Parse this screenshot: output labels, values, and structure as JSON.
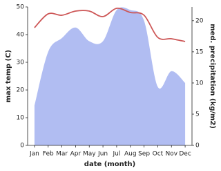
{
  "chart_data": {
    "type": "line-area",
    "x_label": "date (month)",
    "y_label": "max temp (C)",
    "y2_label": "med. precipitation (kg/m2)",
    "categories": [
      "Jan",
      "Feb",
      "Mar",
      "Apr",
      "May",
      "Jun",
      "Jul",
      "Aug",
      "Sep",
      "Oct",
      "Nov",
      "Dec"
    ],
    "ylim": [
      0,
      50
    ],
    "yticks": [
      0,
      10,
      20,
      30,
      40,
      50
    ],
    "y2lim": [
      0,
      22.2
    ],
    "y2ticks": [
      0,
      5,
      10,
      15,
      20
    ],
    "series": [
      {
        "name": "max temp",
        "color": "#cd5757",
        "values": [
          42.5,
          47.5,
          47,
          48.5,
          48.5,
          46.5,
          49.5,
          48,
          47,
          39,
          38.5,
          37.5
        ]
      },
      {
        "name": "precipitation",
        "color": "#b1bdf2",
        "axis": "y2",
        "values": [
          6.4,
          15,
          17.2,
          18.9,
          16.7,
          16.7,
          21.7,
          21.7,
          20,
          9.4,
          11.9,
          10
        ]
      }
    ]
  }
}
